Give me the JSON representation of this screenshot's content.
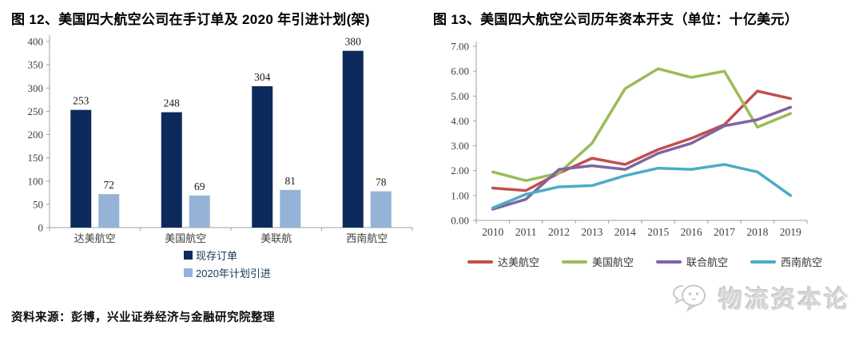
{
  "fig12": {
    "title": "图  12、美国四大航空公司在手订单及 2020 年引进计划(架)"
  },
  "fig13": {
    "title": "图  13、美国四大航空公司历年资本开支（单位：十亿美元）"
  },
  "source_note": "资料来源：彭博，兴业证券经济与金融研究院整理",
  "watermark": {
    "text": "物流资本论",
    "icon": "chat-bubbles-face-icon"
  },
  "chart_data": [
    {
      "type": "bar",
      "title": "美国四大航空公司在手订单及2020年引进计划(架)",
      "categories": [
        "达美航空",
        "美国航空",
        "美联航",
        "西南航空"
      ],
      "series": [
        {
          "name": "现存订单",
          "color": "#0D2A5C",
          "values": [
            253,
            248,
            304,
            380
          ]
        },
        {
          "name": "2020年计划引进",
          "color": "#95B3D7",
          "values": [
            72,
            69,
            81,
            78
          ]
        }
      ],
      "ylim": [
        0,
        400
      ],
      "yticks": [
        0,
        50,
        100,
        150,
        200,
        250,
        300,
        350,
        400
      ],
      "grid": false,
      "legend_position": "bottom-left-column",
      "data_labels": true
    },
    {
      "type": "line",
      "title": "美国四大航空公司历年资本开支（单位：十亿美元）",
      "x": [
        2010,
        2011,
        2012,
        2013,
        2014,
        2015,
        2016,
        2017,
        2018,
        2019
      ],
      "series": [
        {
          "name": "达美航空",
          "color": "#C0504D",
          "values": [
            1.3,
            1.2,
            1.9,
            2.5,
            2.25,
            2.85,
            3.3,
            3.85,
            5.2,
            4.9
          ]
        },
        {
          "name": "美国航空",
          "color": "#9BBB59",
          "values": [
            1.95,
            1.6,
            1.9,
            3.1,
            5.3,
            6.1,
            5.75,
            6.0,
            3.75,
            4.3
          ]
        },
        {
          "name": "联合航空",
          "color": "#8064A2",
          "values": [
            0.45,
            0.85,
            2.05,
            2.2,
            2.05,
            2.7,
            3.1,
            3.8,
            4.05,
            4.55
          ]
        },
        {
          "name": "西南航空",
          "color": "#4BACC6",
          "values": [
            0.5,
            1.05,
            1.35,
            1.4,
            1.8,
            2.1,
            2.05,
            2.25,
            1.95,
            1.0
          ]
        }
      ],
      "ylim": [
        0,
        7
      ],
      "ytick_labels": [
        "0.00",
        "1.00",
        "2.00",
        "3.00",
        "4.00",
        "5.00",
        "6.00",
        "7.00"
      ],
      "grid": false,
      "legend_position": "bottom-row"
    }
  ]
}
